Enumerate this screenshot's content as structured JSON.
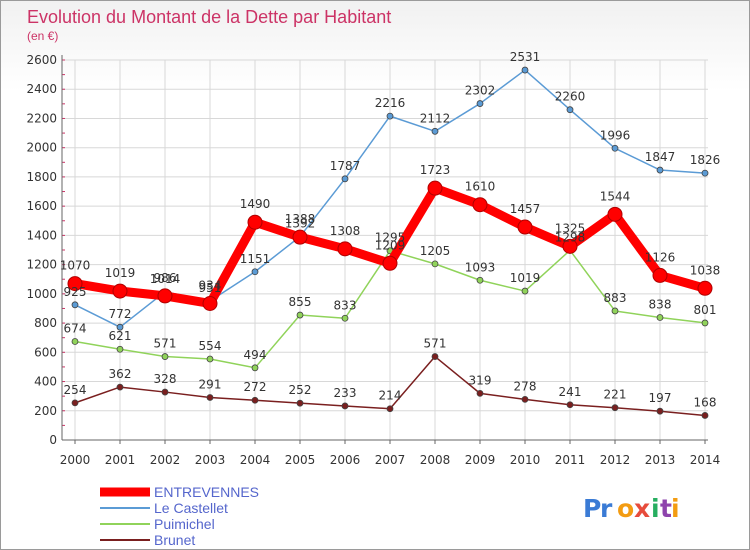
{
  "chart_data": {
    "type": "line",
    "title": "Evolution du Montant de la Dette par Habitant",
    "subtitle": "(en €)",
    "xlabel": "",
    "ylabel": "",
    "categories": [
      "2000",
      "2001",
      "2002",
      "2003",
      "2004",
      "2005",
      "2006",
      "2007",
      "2008",
      "2009",
      "2010",
      "2011",
      "2012",
      "2013",
      "2014"
    ],
    "ylim": [
      0,
      2600
    ],
    "yticks": [
      0,
      200,
      400,
      600,
      800,
      1000,
      1200,
      1400,
      1600,
      1800,
      2000,
      2200,
      2400,
      2600
    ],
    "grid": true,
    "legend_position": "bottom-left",
    "series": [
      {
        "name": "ENTREVENNES",
        "color": "#ff0000",
        "values": [
          1070,
          1019,
          986,
          934,
          1490,
          1388,
          1308,
          1209,
          1723,
          1610,
          1457,
          1325,
          1544,
          1126,
          1038
        ],
        "labels": [
          "1070",
          "1019",
          "986",
          "934",
          "1490",
          "1388",
          "1308",
          "1209",
          "1723",
          "1610",
          "1457",
          "1325",
          "1544",
          "1126",
          "1038"
        ]
      },
      {
        "name": "Le Castellet",
        "color": "#5b9bd5",
        "values": [
          925,
          772,
          1014,
          951,
          1151,
          1392,
          1787,
          2216,
          2112,
          2302,
          2531,
          2260,
          1996,
          1847,
          1826
        ],
        "labels": [
          "925",
          "772",
          "1014",
          "951",
          "1151",
          "1392",
          "1787",
          "2216",
          "2112",
          "2302",
          "2531",
          "2260",
          "1996",
          "1847",
          "1826"
        ]
      },
      {
        "name": "Puimichel",
        "color": "#90d35a",
        "values": [
          674,
          621,
          571,
          554,
          494,
          855,
          833,
          1295,
          1205,
          1093,
          1019,
          1298,
          883,
          838,
          801
        ],
        "labels": [
          "674",
          "621",
          "571",
          "554",
          "494",
          "855",
          "833",
          "1295",
          "1205",
          "1093",
          "1019",
          "1298",
          "883",
          "838",
          "801"
        ]
      },
      {
        "name": "Brunet",
        "color": "#7a1f1f",
        "values": [
          254,
          362,
          328,
          291,
          272,
          252,
          233,
          214,
          571,
          319,
          278,
          241,
          221,
          197,
          168
        ],
        "labels": [
          "254",
          "362",
          "328",
          "291",
          "272",
          "252",
          "233",
          "214",
          "571",
          "319",
          "278",
          "241",
          "221",
          "197",
          "168"
        ]
      }
    ]
  },
  "watermark": "Proxiti"
}
